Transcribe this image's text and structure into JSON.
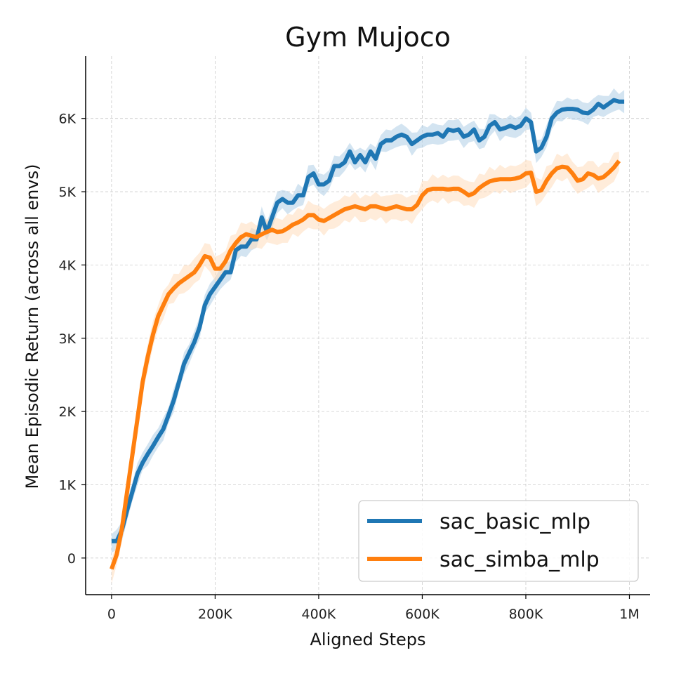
{
  "chart_data": {
    "type": "line",
    "title": "Gym Mujoco",
    "xlabel": "Aligned Steps",
    "ylabel": "Mean Episodic Return (across all envs)",
    "xlim": [
      -50000,
      1040000
    ],
    "ylim": [
      -500,
      6850
    ],
    "x_ticks": [
      0,
      200000,
      400000,
      600000,
      800000,
      1000000
    ],
    "x_tick_labels": [
      "0",
      "200K",
      "400K",
      "600K",
      "800K",
      "1M"
    ],
    "y_ticks": [
      0,
      1000,
      2000,
      3000,
      4000,
      5000,
      6000
    ],
    "y_tick_labels": [
      "0",
      "1K",
      "2K",
      "3K",
      "4K",
      "5K",
      "6K"
    ],
    "grid": true,
    "legend_position": "bottom-right",
    "series": [
      {
        "name": "sac_basic_mlp",
        "color": "#1f77b4",
        "band_color": "#aecde6",
        "points": [
          [
            0,
            230
          ],
          [
            10000,
            230
          ],
          [
            20000,
            380
          ],
          [
            30000,
            650
          ],
          [
            40000,
            900
          ],
          [
            50000,
            1150
          ],
          [
            60000,
            1300
          ],
          [
            70000,
            1420
          ],
          [
            80000,
            1530
          ],
          [
            90000,
            1650
          ],
          [
            100000,
            1760
          ],
          [
            110000,
            1950
          ],
          [
            120000,
            2150
          ],
          [
            130000,
            2400
          ],
          [
            140000,
            2650
          ],
          [
            150000,
            2800
          ],
          [
            160000,
            2950
          ],
          [
            170000,
            3150
          ],
          [
            180000,
            3450
          ],
          [
            190000,
            3600
          ],
          [
            200000,
            3700
          ],
          [
            210000,
            3800
          ],
          [
            220000,
            3900
          ],
          [
            230000,
            3900
          ],
          [
            240000,
            4200
          ],
          [
            250000,
            4250
          ],
          [
            260000,
            4250
          ],
          [
            270000,
            4350
          ],
          [
            280000,
            4350
          ],
          [
            290000,
            4650
          ],
          [
            300000,
            4450
          ],
          [
            310000,
            4650
          ],
          [
            320000,
            4850
          ],
          [
            330000,
            4900
          ],
          [
            340000,
            4850
          ],
          [
            350000,
            4850
          ],
          [
            360000,
            4950
          ],
          [
            370000,
            4950
          ],
          [
            380000,
            5200
          ],
          [
            390000,
            5250
          ],
          [
            400000,
            5100
          ],
          [
            410000,
            5100
          ],
          [
            420000,
            5150
          ],
          [
            430000,
            5350
          ],
          [
            440000,
            5350
          ],
          [
            450000,
            5400
          ],
          [
            460000,
            5550
          ],
          [
            470000,
            5400
          ],
          [
            480000,
            5500
          ],
          [
            490000,
            5400
          ],
          [
            500000,
            5550
          ],
          [
            510000,
            5450
          ],
          [
            520000,
            5650
          ],
          [
            530000,
            5700
          ],
          [
            540000,
            5700
          ],
          [
            550000,
            5750
          ],
          [
            560000,
            5780
          ],
          [
            570000,
            5750
          ],
          [
            580000,
            5650
          ],
          [
            590000,
            5700
          ],
          [
            600000,
            5750
          ],
          [
            610000,
            5780
          ],
          [
            620000,
            5780
          ],
          [
            630000,
            5800
          ],
          [
            640000,
            5750
          ],
          [
            650000,
            5850
          ],
          [
            660000,
            5830
          ],
          [
            670000,
            5850
          ],
          [
            680000,
            5750
          ],
          [
            690000,
            5780
          ],
          [
            700000,
            5850
          ],
          [
            710000,
            5700
          ],
          [
            720000,
            5750
          ],
          [
            730000,
            5900
          ],
          [
            740000,
            5950
          ],
          [
            750000,
            5850
          ],
          [
            760000,
            5870
          ],
          [
            770000,
            5900
          ],
          [
            780000,
            5870
          ],
          [
            790000,
            5900
          ],
          [
            800000,
            6000
          ],
          [
            810000,
            5950
          ],
          [
            820000,
            5550
          ],
          [
            830000,
            5600
          ],
          [
            840000,
            5750
          ],
          [
            850000,
            6000
          ],
          [
            860000,
            6080
          ],
          [
            870000,
            6120
          ],
          [
            880000,
            6130
          ],
          [
            890000,
            6130
          ],
          [
            900000,
            6120
          ],
          [
            910000,
            6080
          ],
          [
            920000,
            6070
          ],
          [
            930000,
            6120
          ],
          [
            940000,
            6200
          ],
          [
            950000,
            6150
          ],
          [
            960000,
            6200
          ],
          [
            970000,
            6250
          ],
          [
            980000,
            6230
          ],
          [
            990000,
            6230
          ]
        ],
        "band_halfwidth": 160
      },
      {
        "name": "sac_simba_mlp",
        "color": "#ff7f0e",
        "band_color": "#ffdcbc",
        "points": [
          [
            0,
            -150
          ],
          [
            10000,
            50
          ],
          [
            20000,
            400
          ],
          [
            30000,
            900
          ],
          [
            40000,
            1400
          ],
          [
            50000,
            1900
          ],
          [
            60000,
            2400
          ],
          [
            70000,
            2750
          ],
          [
            80000,
            3050
          ],
          [
            90000,
            3300
          ],
          [
            100000,
            3450
          ],
          [
            110000,
            3600
          ],
          [
            120000,
            3680
          ],
          [
            130000,
            3750
          ],
          [
            140000,
            3800
          ],
          [
            150000,
            3850
          ],
          [
            160000,
            3900
          ],
          [
            170000,
            4000
          ],
          [
            180000,
            4120
          ],
          [
            190000,
            4100
          ],
          [
            200000,
            3950
          ],
          [
            210000,
            3950
          ],
          [
            220000,
            4050
          ],
          [
            230000,
            4200
          ],
          [
            240000,
            4300
          ],
          [
            250000,
            4380
          ],
          [
            260000,
            4420
          ],
          [
            270000,
            4400
          ],
          [
            280000,
            4380
          ],
          [
            290000,
            4420
          ],
          [
            300000,
            4450
          ],
          [
            310000,
            4480
          ],
          [
            320000,
            4450
          ],
          [
            330000,
            4460
          ],
          [
            340000,
            4500
          ],
          [
            350000,
            4550
          ],
          [
            360000,
            4580
          ],
          [
            370000,
            4620
          ],
          [
            380000,
            4680
          ],
          [
            390000,
            4680
          ],
          [
            400000,
            4620
          ],
          [
            410000,
            4600
          ],
          [
            420000,
            4640
          ],
          [
            430000,
            4680
          ],
          [
            440000,
            4720
          ],
          [
            450000,
            4760
          ],
          [
            460000,
            4780
          ],
          [
            470000,
            4800
          ],
          [
            480000,
            4780
          ],
          [
            490000,
            4760
          ],
          [
            500000,
            4800
          ],
          [
            510000,
            4800
          ],
          [
            520000,
            4780
          ],
          [
            530000,
            4760
          ],
          [
            540000,
            4780
          ],
          [
            550000,
            4800
          ],
          [
            560000,
            4780
          ],
          [
            570000,
            4760
          ],
          [
            580000,
            4760
          ],
          [
            590000,
            4820
          ],
          [
            600000,
            4950
          ],
          [
            610000,
            5020
          ],
          [
            620000,
            5040
          ],
          [
            630000,
            5040
          ],
          [
            640000,
            5040
          ],
          [
            650000,
            5030
          ],
          [
            660000,
            5040
          ],
          [
            670000,
            5040
          ],
          [
            680000,
            5000
          ],
          [
            690000,
            4950
          ],
          [
            700000,
            4980
          ],
          [
            710000,
            5050
          ],
          [
            720000,
            5100
          ],
          [
            730000,
            5140
          ],
          [
            740000,
            5160
          ],
          [
            750000,
            5170
          ],
          [
            760000,
            5170
          ],
          [
            770000,
            5170
          ],
          [
            780000,
            5180
          ],
          [
            790000,
            5200
          ],
          [
            800000,
            5250
          ],
          [
            810000,
            5260
          ],
          [
            820000,
            5000
          ],
          [
            830000,
            5020
          ],
          [
            840000,
            5150
          ],
          [
            850000,
            5250
          ],
          [
            860000,
            5320
          ],
          [
            870000,
            5340
          ],
          [
            880000,
            5330
          ],
          [
            890000,
            5250
          ],
          [
            900000,
            5150
          ],
          [
            910000,
            5170
          ],
          [
            920000,
            5250
          ],
          [
            930000,
            5230
          ],
          [
            940000,
            5180
          ],
          [
            950000,
            5200
          ],
          [
            960000,
            5260
          ],
          [
            970000,
            5330
          ],
          [
            980000,
            5420
          ]
        ],
        "band_halfwidth": 200
      }
    ]
  }
}
